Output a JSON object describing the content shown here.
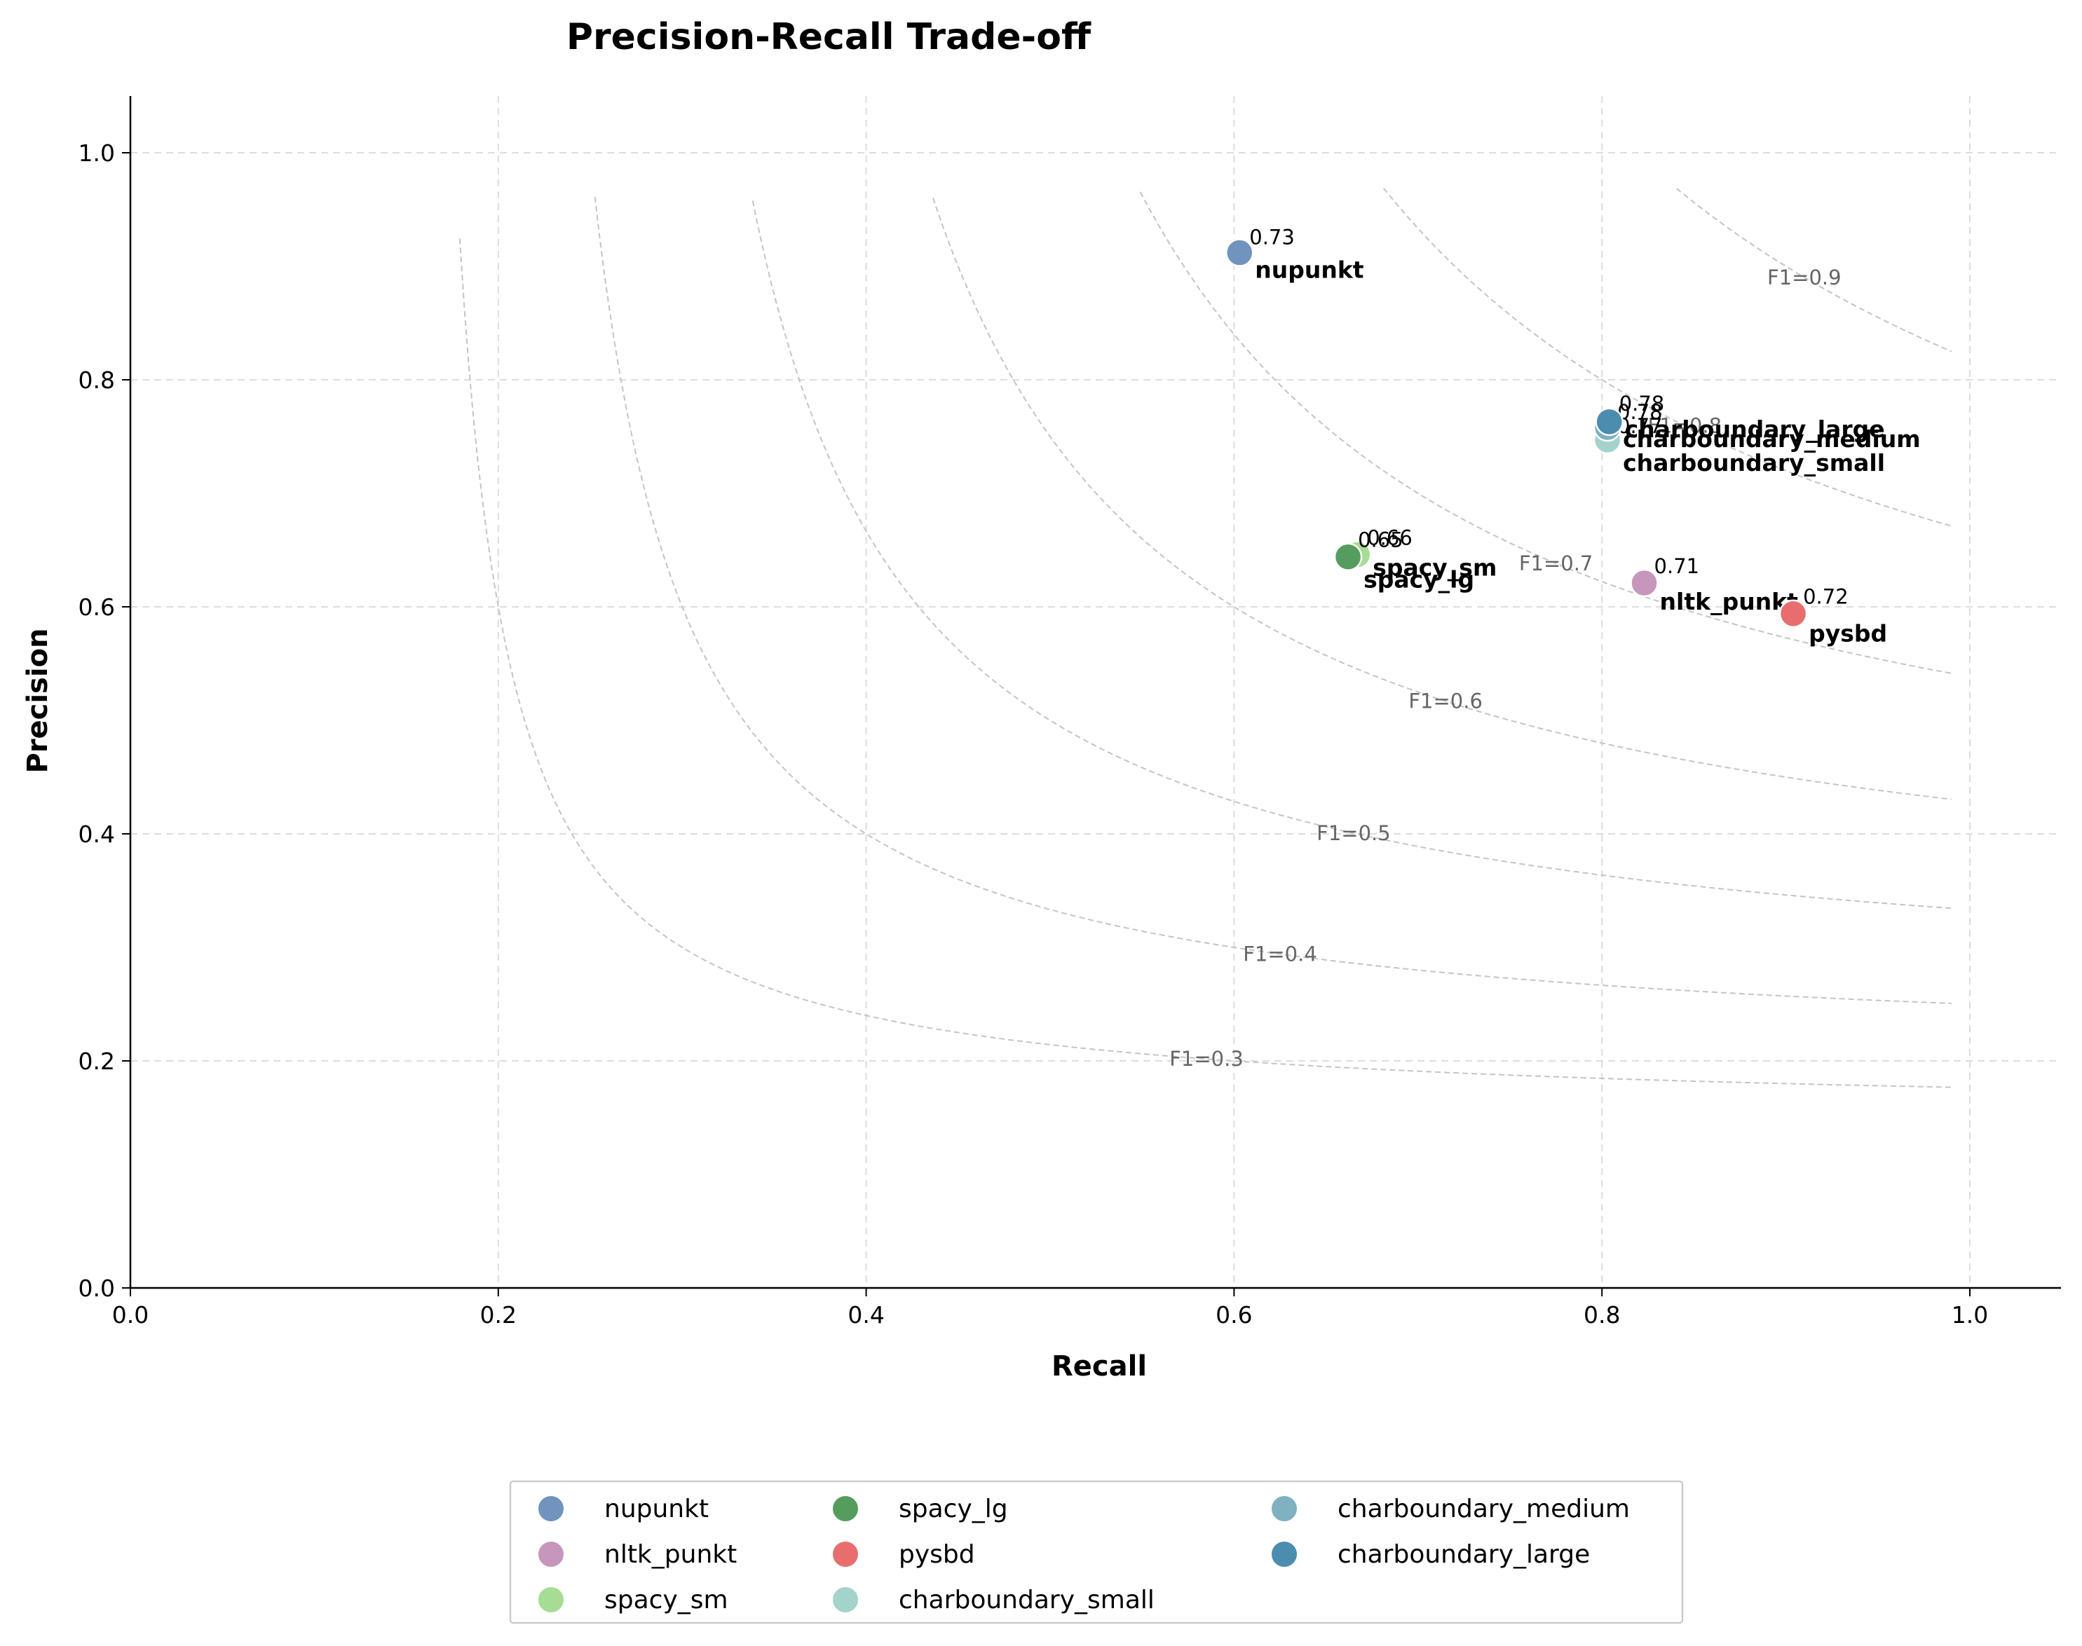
{
  "chart_data": {
    "type": "scatter",
    "title": "Precision-Recall Trade-off",
    "xlabel": "Recall",
    "ylabel": "Precision",
    "xlim": [
      0.0,
      1.05
    ],
    "ylim": [
      0.0,
      1.05
    ],
    "xticks": [
      "0.0",
      "0.2",
      "0.4",
      "0.6",
      "0.8",
      "1.0"
    ],
    "yticks": [
      "0.0",
      "0.2",
      "0.4",
      "0.6",
      "0.8",
      "1.0"
    ],
    "grid": true,
    "legend_position": "bottom-center",
    "series": [
      {
        "name": "nupunkt",
        "color": "#7193bd",
        "recall": 0.603,
        "precision": 0.912,
        "f1_label": "0.73"
      },
      {
        "name": "nltk_punkt",
        "color": "#c696bd",
        "recall": 0.823,
        "precision": 0.621,
        "f1_label": "0.71"
      },
      {
        "name": "spacy_sm",
        "color": "#a6dc93",
        "recall": 0.667,
        "precision": 0.646,
        "f1_label": "0.66"
      },
      {
        "name": "spacy_lg",
        "color": "#559d5e",
        "recall": 0.662,
        "precision": 0.644,
        "f1_label": "0.65"
      },
      {
        "name": "pysbd",
        "color": "#e86e6e",
        "recall": 0.904,
        "precision": 0.594,
        "f1_label": "0.72"
      },
      {
        "name": "charboundary_small",
        "color": "#a3d3cb",
        "recall": 0.803,
        "precision": 0.747,
        "f1_label": "0.77"
      },
      {
        "name": "charboundary_medium",
        "color": "#7fb1c0",
        "recall": 0.803,
        "precision": 0.758,
        "f1_label": "0.78"
      },
      {
        "name": "charboundary_large",
        "color": "#4b8caf",
        "recall": 0.804,
        "precision": 0.763,
        "f1_label": "0.78"
      }
    ],
    "iso_f1_curves": [
      {
        "f1": 0.3,
        "label": "F1=0.3"
      },
      {
        "f1": 0.4,
        "label": "F1=0.4"
      },
      {
        "f1": 0.5,
        "label": "F1=0.5"
      },
      {
        "f1": 0.6,
        "label": "F1=0.6"
      },
      {
        "f1": 0.7,
        "label": "F1=0.7"
      },
      {
        "f1": 0.8,
        "label": "F1=0.8"
      },
      {
        "f1": 0.9,
        "label": "F1=0.9"
      }
    ]
  }
}
